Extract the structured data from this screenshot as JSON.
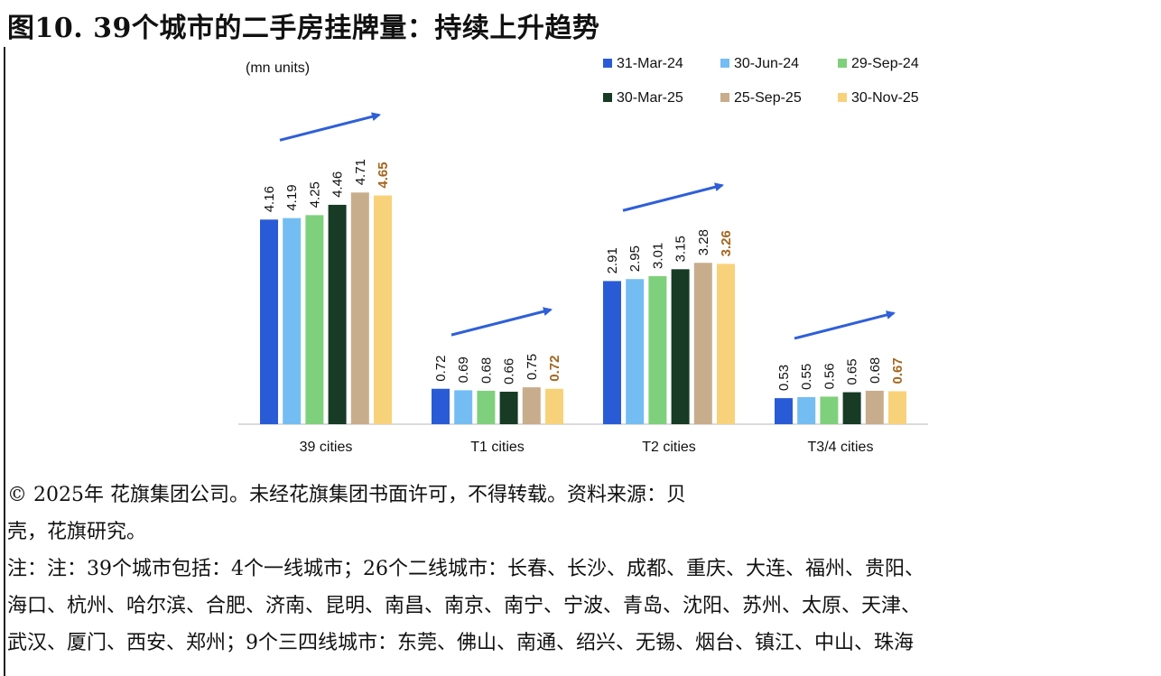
{
  "figure": {
    "title": "图10. 39个城市的二手房挂牌量：持续上升趋势"
  },
  "chart_data": {
    "type": "bar",
    "title": "",
    "unit_label": "(mn units)",
    "ylabel": "",
    "xlabel": "",
    "ylim": [
      0,
      5
    ],
    "grid": false,
    "legend_position": "top-right",
    "categories": [
      "39 cities",
      "T1 cities",
      "T2 cities",
      "T3/4 cities"
    ],
    "series": [
      {
        "name": "31-Mar-24",
        "color": "#2a5bd7",
        "values": [
          4.16,
          0.72,
          2.91,
          0.53
        ]
      },
      {
        "name": "30-Jun-24",
        "color": "#74bdf2",
        "values": [
          4.19,
          0.69,
          2.95,
          0.55
        ]
      },
      {
        "name": "29-Sep-24",
        "color": "#7fd07c",
        "values": [
          4.25,
          0.68,
          3.01,
          0.56
        ]
      },
      {
        "name": "30-Mar-25",
        "color": "#173b25",
        "values": [
          4.46,
          0.66,
          3.15,
          0.65
        ]
      },
      {
        "name": "25-Sep-25",
        "color": "#c8ad8d",
        "values": [
          4.71,
          0.75,
          3.28,
          0.68
        ]
      },
      {
        "name": "30-Nov-25",
        "color": "#f8d27a",
        "values": [
          4.65,
          0.72,
          3.26,
          0.67
        ]
      }
    ],
    "highlight_label_color": "#a4661e",
    "trend_arrow_color": "#2f5fd8",
    "label_text_color": "#111111"
  },
  "notes": {
    "copyright": "© 2025年 花旗集团公司。未经花旗集团书面许可，不得转载。资料来源：贝壳，花旗研究。",
    "note_line1": "注：注：39个城市包括：4个一线城市；26个二线城市：长春、长沙、成都、重庆、大连、福州、贵阳、",
    "note_line2": "海口、杭州、哈尔滨、合肥、济南、昆明、南昌、南京、南宁、宁波、青岛、沈阳、苏州、太原、天津、",
    "note_line3": "武汉、厦门、西安、郑州；9个三四线城市：东莞、佛山、南通、绍兴、无锡、烟台、镇江、中山、珠海"
  }
}
